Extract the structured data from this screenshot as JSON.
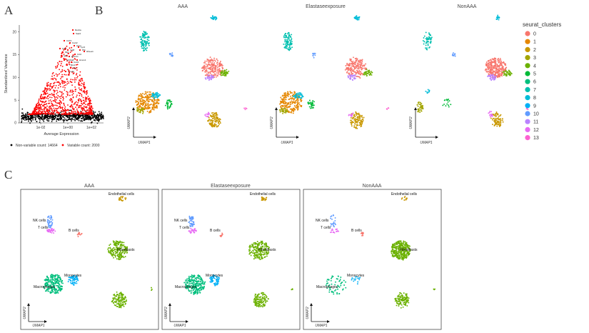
{
  "panels": {
    "A": "A",
    "B": "B",
    "C": "C"
  },
  "cluster_colors": [
    "#F8766D",
    "#E58700",
    "#C99800",
    "#A3A500",
    "#6BB100",
    "#00BA38",
    "#00BF7D",
    "#00C0AF",
    "#00BCD8",
    "#00B0F6",
    "#619CFF",
    "#B983FF",
    "#E76BF3",
    "#FD61D1"
  ],
  "chart_data": [
    {
      "type": "scatter",
      "panel": "A",
      "title": "",
      "xlabel": "Average Expression",
      "ylabel": "Standardized Variance",
      "xticks": [
        "1e-02",
        "1e+00",
        "1e+02"
      ],
      "yticks": [
        0,
        5,
        10,
        15,
        20
      ],
      "ylim": [
        0,
        22
      ],
      "legend": [
        "Non-variable count: 14664",
        "Variable count: 2000"
      ],
      "legend_colors": [
        "#000000",
        "#ff0000"
      ],
      "labeled_genes": [
        "Retnla",
        "Saa3",
        "Cd74",
        "Cxcl2",
        "Apoe",
        "Lyz2",
        "Ccl8",
        "Mt2",
        "Pf4",
        "Hba-a1",
        "Igkc",
        "Hbb-bs",
        "Ccl2",
        "S100a8",
        "Cxcl1",
        "Thbs1",
        "Ccl7",
        "Hmox1",
        "Mt1",
        "Tyrobp"
      ]
    },
    {
      "type": "scatter",
      "panel": "B",
      "facets": [
        "AAA",
        "Elastaseexposure",
        "NonAAA"
      ],
      "xlabel": "UMAP1",
      "ylabel": "UMAP2",
      "legend_title": "seurat_clusters",
      "legend": [
        "0",
        "1",
        "2",
        "3",
        "4",
        "5",
        "6",
        "7",
        "8",
        "9",
        "10",
        "11",
        "12",
        "13"
      ]
    },
    {
      "type": "scatter",
      "panel": "C",
      "facets": [
        "AAA",
        "Elastaseexposure",
        "NonAAA"
      ],
      "xlabel": "UMAP1",
      "ylabel": "UMAP2",
      "cell_labels": [
        [
          "Endothelial cells",
          "NK cells",
          "T cells",
          "B cells",
          "Fibroblasts",
          "Monocytes",
          "Macrophages"
        ],
        [
          "Endothelial cells",
          "NK cells",
          "T cells",
          "B cells",
          "Fibroblasts",
          "Monocytes",
          "Macrophages"
        ],
        [
          "Endothelial cells",
          "NK cells",
          "T cells",
          "B cells",
          "Fibroblasts",
          "Monocytes",
          "Macrophages"
        ]
      ]
    }
  ]
}
